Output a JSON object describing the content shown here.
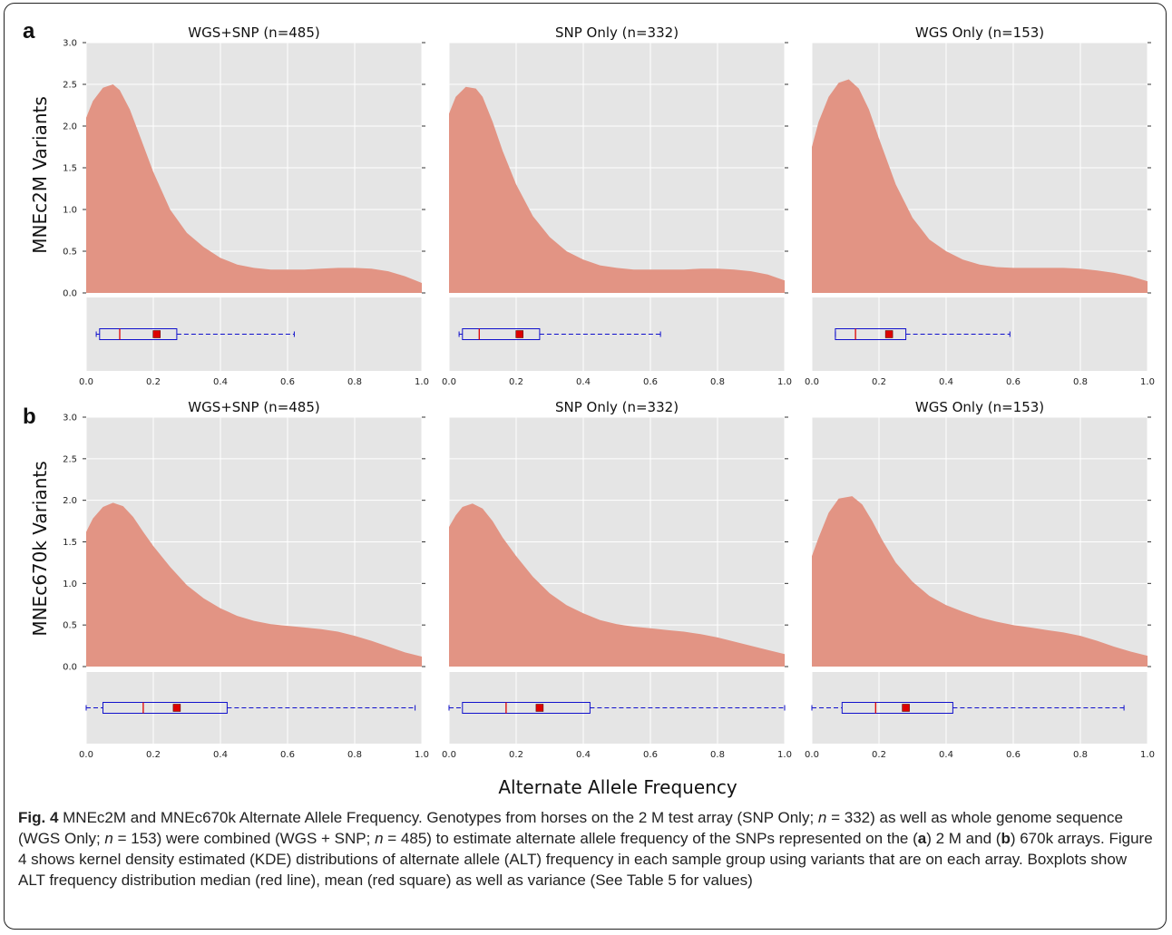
{
  "figure": {
    "panel_letters": [
      "a",
      "b"
    ],
    "ylabels": [
      "MNEc2M Variants",
      "MNEc670k Variants"
    ],
    "xlabel": "Alternate Allele Frequency",
    "caption": {
      "label": "Fig. 4",
      "title": "MNEc2M and MNEc670k Alternate Allele Frequency.",
      "p1": "Genotypes from horses on the 2 M test array (SNP Only;",
      "p2": "= 332) as well as whole genome sequence (WGS Only;",
      "p3": "= 153) were combined (WGS + SNP;",
      "p4": "= 485) to estimate alternate allele frequency of the SNPs represented on the (",
      "p5": ") 2 M and (",
      "p6": ") 670k arrays. Figure 4 shows kernel density estimated (KDE) distributions of alternate allele (ALT) frequency in each sample group using variants that are on each array. Boxplots show ALT frequency distribution median (red line), mean (red square) as well as variance (See Table 5 for values)",
      "n": "n",
      "a": "a",
      "b": "b"
    }
  },
  "chart_data": [
    {
      "type": "area",
      "row": "a",
      "title": "WGS+SNP (n=485)",
      "ylabel": "MNEc2M Variants",
      "xlim": [
        0,
        1
      ],
      "ylim": [
        0,
        3.0
      ],
      "x": [
        0,
        0.02,
        0.05,
        0.08,
        0.1,
        0.13,
        0.16,
        0.2,
        0.25,
        0.3,
        0.35,
        0.4,
        0.45,
        0.5,
        0.55,
        0.6,
        0.65,
        0.7,
        0.75,
        0.8,
        0.85,
        0.9,
        0.95,
        1.0
      ],
      "y": [
        2.1,
        2.3,
        2.46,
        2.5,
        2.43,
        2.2,
        1.88,
        1.45,
        1.0,
        0.72,
        0.55,
        0.42,
        0.34,
        0.3,
        0.28,
        0.28,
        0.28,
        0.29,
        0.3,
        0.3,
        0.29,
        0.26,
        0.2,
        0.12
      ],
      "box": {
        "whislo": 0.03,
        "q1": 0.04,
        "med": 0.1,
        "mean": 0.21,
        "q3": 0.27,
        "whishi": 0.62
      },
      "xticks": [
        "0.0",
        "0.2",
        "0.4",
        "0.6",
        "0.8",
        "1.0"
      ],
      "yticks": [
        "0.0",
        "0.5",
        "1.0",
        "1.5",
        "2.0",
        "2.5",
        "3.0"
      ]
    },
    {
      "type": "area",
      "row": "a",
      "title": "SNP Only (n=332)",
      "xlim": [
        0,
        1
      ],
      "ylim": [
        0,
        3.0
      ],
      "x": [
        0,
        0.02,
        0.05,
        0.08,
        0.1,
        0.13,
        0.16,
        0.2,
        0.25,
        0.3,
        0.35,
        0.4,
        0.45,
        0.5,
        0.55,
        0.6,
        0.65,
        0.7,
        0.75,
        0.8,
        0.85,
        0.9,
        0.95,
        1.0
      ],
      "y": [
        2.15,
        2.35,
        2.47,
        2.45,
        2.35,
        2.05,
        1.7,
        1.3,
        0.92,
        0.67,
        0.5,
        0.4,
        0.33,
        0.3,
        0.28,
        0.28,
        0.28,
        0.28,
        0.29,
        0.29,
        0.28,
        0.26,
        0.22,
        0.15
      ],
      "box": {
        "whislo": 0.03,
        "q1": 0.04,
        "med": 0.09,
        "mean": 0.21,
        "q3": 0.27,
        "whishi": 0.63
      },
      "xticks": [
        "0.0",
        "0.2",
        "0.4",
        "0.6",
        "0.8",
        "1.0"
      ]
    },
    {
      "type": "area",
      "row": "a",
      "title": "WGS Only (n=153)",
      "xlim": [
        0,
        1
      ],
      "ylim": [
        0,
        3.0
      ],
      "x": [
        0,
        0.02,
        0.05,
        0.08,
        0.11,
        0.14,
        0.17,
        0.2,
        0.25,
        0.3,
        0.35,
        0.4,
        0.45,
        0.5,
        0.55,
        0.6,
        0.65,
        0.7,
        0.75,
        0.8,
        0.85,
        0.9,
        0.95,
        1.0
      ],
      "y": [
        1.75,
        2.05,
        2.35,
        2.52,
        2.56,
        2.45,
        2.2,
        1.85,
        1.3,
        0.9,
        0.64,
        0.5,
        0.4,
        0.34,
        0.31,
        0.3,
        0.3,
        0.3,
        0.3,
        0.29,
        0.27,
        0.24,
        0.2,
        0.14
      ],
      "box": {
        "whislo": 0.07,
        "q1": 0.07,
        "med": 0.13,
        "mean": 0.23,
        "q3": 0.28,
        "whishi": 0.59
      },
      "xticks": [
        "0.0",
        "0.2",
        "0.4",
        "0.6",
        "0.8",
        "1.0"
      ]
    },
    {
      "type": "area",
      "row": "b",
      "title": "WGS+SNP (n=485)",
      "ylabel": "MNEc670k Variants",
      "xlim": [
        0,
        1
      ],
      "ylim": [
        0,
        3.0
      ],
      "x": [
        0,
        0.02,
        0.05,
        0.08,
        0.11,
        0.14,
        0.17,
        0.2,
        0.25,
        0.3,
        0.35,
        0.4,
        0.45,
        0.5,
        0.55,
        0.6,
        0.65,
        0.7,
        0.75,
        0.8,
        0.85,
        0.9,
        0.95,
        1.0
      ],
      "y": [
        1.62,
        1.78,
        1.92,
        1.97,
        1.93,
        1.8,
        1.62,
        1.45,
        1.2,
        0.98,
        0.82,
        0.7,
        0.61,
        0.55,
        0.51,
        0.49,
        0.47,
        0.45,
        0.42,
        0.37,
        0.31,
        0.24,
        0.17,
        0.12
      ],
      "box": {
        "whislo": 0.0,
        "q1": 0.05,
        "med": 0.17,
        "mean": 0.27,
        "q3": 0.42,
        "whishi": 0.98
      },
      "xticks": [
        "0.0",
        "0.2",
        "0.4",
        "0.6",
        "0.8",
        "1.0"
      ],
      "yticks": [
        "0.0",
        "0.5",
        "1.0",
        "1.5",
        "2.0",
        "2.5",
        "3.0"
      ]
    },
    {
      "type": "area",
      "row": "b",
      "title": "SNP Only (n=332)",
      "xlim": [
        0,
        1
      ],
      "ylim": [
        0,
        3.0
      ],
      "x": [
        0,
        0.02,
        0.04,
        0.07,
        0.1,
        0.13,
        0.16,
        0.2,
        0.25,
        0.3,
        0.35,
        0.4,
        0.45,
        0.5,
        0.55,
        0.6,
        0.65,
        0.7,
        0.75,
        0.8,
        0.85,
        0.9,
        0.95,
        1.0
      ],
      "y": [
        1.68,
        1.82,
        1.92,
        1.96,
        1.9,
        1.75,
        1.55,
        1.33,
        1.08,
        0.88,
        0.74,
        0.64,
        0.56,
        0.51,
        0.48,
        0.46,
        0.44,
        0.42,
        0.39,
        0.35,
        0.3,
        0.25,
        0.2,
        0.15
      ],
      "box": {
        "whislo": 0.0,
        "q1": 0.04,
        "med": 0.17,
        "mean": 0.27,
        "q3": 0.42,
        "whishi": 1.0
      },
      "xticks": [
        "0.0",
        "0.2",
        "0.4",
        "0.6",
        "0.8",
        "1.0"
      ]
    },
    {
      "type": "area",
      "row": "b",
      "title": "WGS Only (n=153)",
      "xlim": [
        0,
        1
      ],
      "ylim": [
        0,
        3.0
      ],
      "x": [
        0,
        0.02,
        0.05,
        0.08,
        0.12,
        0.15,
        0.18,
        0.21,
        0.25,
        0.3,
        0.35,
        0.4,
        0.45,
        0.5,
        0.55,
        0.6,
        0.65,
        0.7,
        0.75,
        0.8,
        0.85,
        0.9,
        0.95,
        1.0
      ],
      "y": [
        1.33,
        1.55,
        1.85,
        2.02,
        2.05,
        1.95,
        1.75,
        1.52,
        1.25,
        1.02,
        0.85,
        0.74,
        0.66,
        0.59,
        0.54,
        0.5,
        0.47,
        0.44,
        0.41,
        0.37,
        0.31,
        0.24,
        0.18,
        0.13
      ],
      "box": {
        "whislo": 0.0,
        "q1": 0.09,
        "med": 0.19,
        "mean": 0.28,
        "q3": 0.42,
        "whishi": 0.93
      },
      "xticks": [
        "0.0",
        "0.2",
        "0.4",
        "0.6",
        "0.8",
        "1.0"
      ]
    }
  ],
  "colors": {
    "panel_bg": "#e5e5e5",
    "grid": "#ffffff",
    "kde_fill": "#e29484",
    "box_stroke": "#1010cc",
    "median": "#dd0000",
    "mean": "#dd0000"
  }
}
